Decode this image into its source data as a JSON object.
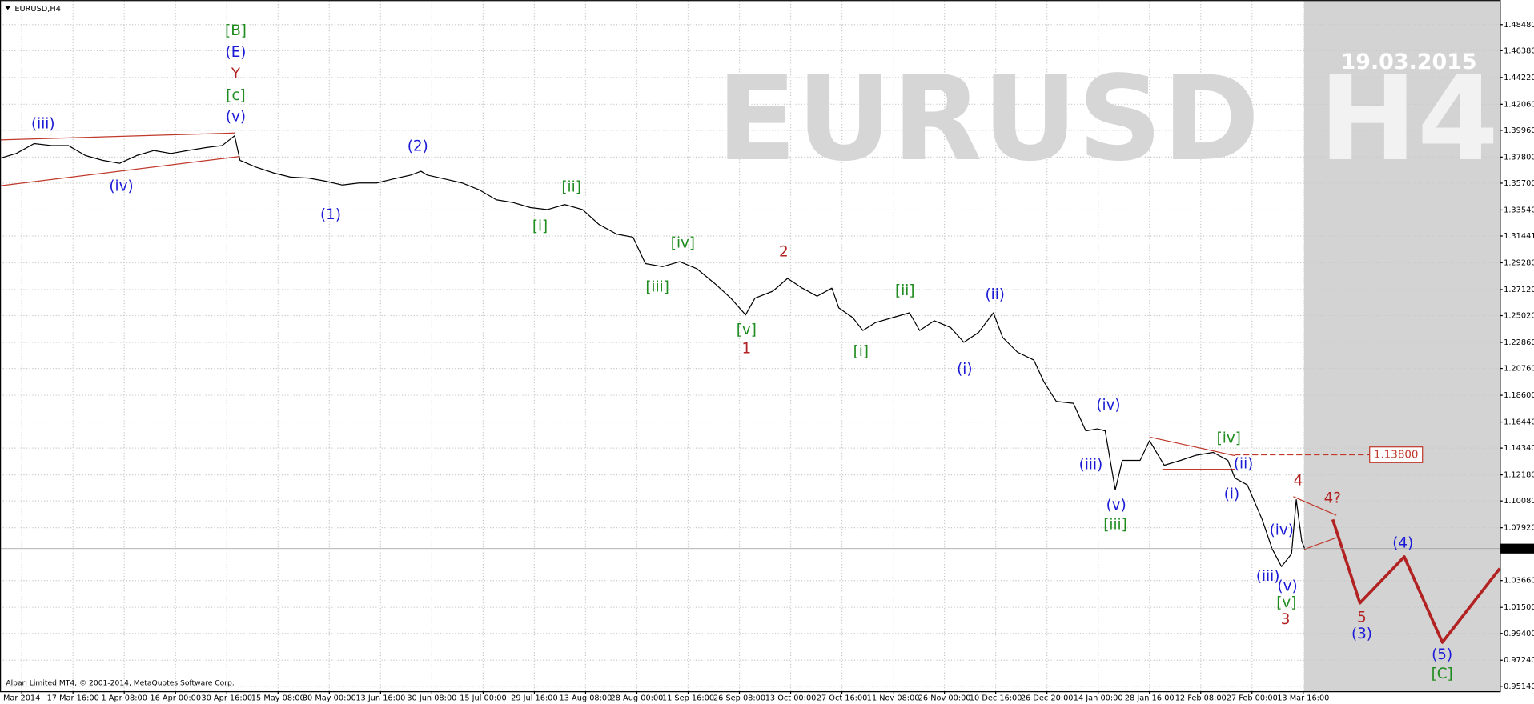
{
  "chart_data": {
    "type": "line",
    "title": "EURUSD,H4",
    "footer": "Alpari Limited MT4, © 2001-2014, MetaQuotes Software Corp.",
    "watermark": {
      "symbol": "EURUSD",
      "timeframe": "H4",
      "date": "19.03.2015"
    },
    "grid": true,
    "xlim": [
      0,
      1931
    ],
    "ylim": [
      0.9474,
      1.5038
    ],
    "xticks": [
      {
        "value": 28,
        "label": "Mar 2014"
      },
      {
        "value": 94,
        "label": "17 Mar 16:00"
      },
      {
        "value": 160,
        "label": "1 Apr 08:00"
      },
      {
        "value": 226,
        "label": "16 Apr 00:00"
      },
      {
        "value": 292,
        "label": "30 Apr 16:00"
      },
      {
        "value": 358,
        "label": "15 May 08:00"
      },
      {
        "value": 424,
        "label": "30 May 00:00"
      },
      {
        "value": 490,
        "label": "13 Jun 16:00"
      },
      {
        "value": 556,
        "label": "30 Jun 08:00"
      },
      {
        "value": 622,
        "label": "15 Jul 00:00"
      },
      {
        "value": 688,
        "label": "29 Jul 16:00"
      },
      {
        "value": 754,
        "label": "13 Aug 08:00"
      },
      {
        "value": 820,
        "label": "28 Aug 00:00"
      },
      {
        "value": 886,
        "label": "11 Sep 16:00"
      },
      {
        "value": 952,
        "label": "26 Sep 08:00"
      },
      {
        "value": 1018,
        "label": "13 Oct 00:00"
      },
      {
        "value": 1084,
        "label": "27 Oct 16:00"
      },
      {
        "value": 1150,
        "label": "11 Nov 08:00"
      },
      {
        "value": 1216,
        "label": "26 Nov 00:00"
      },
      {
        "value": 1282,
        "label": "10 Dec 16:00"
      },
      {
        "value": 1348,
        "label": "26 Dec 20:00"
      },
      {
        "value": 1414,
        "label": "14 Jan 00:00"
      },
      {
        "value": 1480,
        "label": "28 Jan 16:00"
      },
      {
        "value": 1546,
        "label": "12 Feb 08:00"
      },
      {
        "value": 1612,
        "label": "27 Feb 00:00"
      },
      {
        "value": 1678,
        "label": "13 Mar 16:00"
      }
    ],
    "yticks": [
      {
        "value": 1.4848,
        "label": "1.48480"
      },
      {
        "value": 1.4638,
        "label": "1.46380"
      },
      {
        "value": 1.4422,
        "label": "1.44220"
      },
      {
        "value": 1.4206,
        "label": "1.42060"
      },
      {
        "value": 1.3996,
        "label": "1.39960"
      },
      {
        "value": 1.378,
        "label": "1.37800"
      },
      {
        "value": 1.357,
        "label": "1.35700"
      },
      {
        "value": 1.3354,
        "label": "1.33540"
      },
      {
        "value": 1.31441,
        "label": "1.31441"
      },
      {
        "value": 1.2928,
        "label": "1.29280"
      },
      {
        "value": 1.2712,
        "label": "1.27120"
      },
      {
        "value": 1.2502,
        "label": "1.25020"
      },
      {
        "value": 1.2286,
        "label": "1.22860"
      },
      {
        "value": 1.2076,
        "label": "1.20760"
      },
      {
        "value": 1.186,
        "label": "1.18600"
      },
      {
        "value": 1.1644,
        "label": "1.16440"
      },
      {
        "value": 1.1434,
        "label": "1.14340"
      },
      {
        "value": 1.1218,
        "label": "1.12180"
      },
      {
        "value": 1.1008,
        "label": "1.10080"
      },
      {
        "value": 1.0792,
        "label": "1.07920"
      },
      {
        "value": 1.0366,
        "label": "1.03660"
      },
      {
        "value": 1.015,
        "label": "1.01500"
      },
      {
        "value": 0.994,
        "label": "0.99400"
      },
      {
        "value": 0.9724,
        "label": "0.97240"
      },
      {
        "value": 0.9514,
        "label": "0.95140"
      }
    ],
    "series": [
      {
        "color": "#000000",
        "x": [
          0,
          21,
          44,
          66,
          88,
          110,
          132,
          154,
          176,
          198,
          220,
          242,
          265,
          286,
          302,
          309,
          330,
          353,
          374,
          397,
          418,
          441,
          462,
          485,
          506,
          529,
          542,
          550,
          573,
          595,
          617,
          639,
          661,
          683,
          705,
          727,
          750,
          771,
          794,
          815,
          831,
          853,
          875,
          897,
          920,
          941,
          960,
          972,
          995,
          1014,
          1033,
          1052,
          1071,
          1080,
          1098,
          1111,
          1127,
          1149,
          1171,
          1184,
          1203,
          1224,
          1241,
          1260,
          1279,
          1291,
          1310,
          1331,
          1344,
          1360,
          1382,
          1398,
          1413,
          1423,
          1436,
          1445,
          1468,
          1480,
          1499,
          1520,
          1539,
          1562,
          1581,
          1590,
          1606,
          1625,
          1638,
          1650,
          1663,
          1669,
          1676,
          1680
        ],
        "values": [
          1.377,
          1.3809,
          1.3889,
          1.3873,
          1.3873,
          1.3793,
          1.3754,
          1.373,
          1.3793,
          1.3833,
          1.3809,
          1.3833,
          1.3857,
          1.3873,
          1.3952,
          1.3754,
          1.3698,
          1.3651,
          1.3619,
          1.3611,
          1.3587,
          1.3555,
          1.3571,
          1.3571,
          1.3603,
          1.3635,
          1.3666,
          1.3635,
          1.3603,
          1.3571,
          1.3516,
          1.3436,
          1.3413,
          1.3373,
          1.3357,
          1.3397,
          1.3357,
          1.3238,
          1.3159,
          1.3135,
          1.2921,
          1.2897,
          1.2937,
          1.2881,
          1.2762,
          1.2643,
          1.2508,
          1.2643,
          1.2699,
          1.2802,
          1.2723,
          1.2659,
          1.2723,
          1.2564,
          1.2485,
          1.2382,
          1.2445,
          1.2485,
          1.2525,
          1.2382,
          1.2461,
          1.2406,
          1.2287,
          1.2366,
          1.2525,
          1.2326,
          1.2207,
          1.2144,
          1.1969,
          1.1811,
          1.1795,
          1.1573,
          1.1589,
          1.1573,
          1.1097,
          1.1335,
          1.1335,
          1.1494,
          1.1295,
          1.1335,
          1.1375,
          1.1399,
          1.1335,
          1.1192,
          1.1137,
          1.0859,
          1.0621,
          1.0479,
          1.0582,
          1.1018,
          1.0685,
          1.0621
        ]
      },
      {
        "color": "#b22222",
        "x": [
          1716,
          1751,
          1808,
          1857,
          1931
        ],
        "values": [
          1.0859,
          1.0185,
          1.0558,
          0.9868,
          1.0463
        ]
      }
    ],
    "hlines": [
      {
        "value": 1.138,
        "label": "1.13800",
        "color": "#c0392b"
      },
      {
        "value": 1.06239,
        "label": "1.06239",
        "color": "#000000"
      }
    ],
    "annotations": [
      {
        "text": "[B]",
        "color": "#1e8c1e"
      },
      {
        "text": "(E)",
        "color": "#1a1ad6"
      },
      {
        "text": "Y",
        "color": "#b22222"
      },
      {
        "text": "[c]",
        "color": "#1e8c1e"
      },
      {
        "text": "(v)",
        "color": "#1a1ad6"
      },
      {
        "text": "(iii)",
        "color": "#1a1ad6"
      },
      {
        "text": "(iv)",
        "color": "#1a1ad6"
      },
      {
        "text": "(2)",
        "color": "#1a1ad6"
      },
      {
        "text": "(1)",
        "color": "#1a1ad6"
      },
      {
        "text": "[ii]",
        "color": "#1e8c1e"
      },
      {
        "text": "[i]",
        "color": "#1e8c1e"
      },
      {
        "text": "[iv]",
        "color": "#1e8c1e"
      },
      {
        "text": "[iii]",
        "color": "#1e8c1e"
      },
      {
        "text": "2",
        "color": "#b22222"
      },
      {
        "text": "[v]",
        "color": "#1e8c1e"
      },
      {
        "text": "1",
        "color": "#b22222"
      },
      {
        "text": "[ii]",
        "color": "#1e8c1e"
      },
      {
        "text": "(ii)",
        "color": "#1a1ad6"
      },
      {
        "text": "[i]",
        "color": "#1e8c1e"
      },
      {
        "text": "(i)",
        "color": "#1a1ad6"
      },
      {
        "text": "(iv)",
        "color": "#1a1ad6"
      },
      {
        "text": "(iii)",
        "color": "#1a1ad6"
      },
      {
        "text": "(v)",
        "color": "#1a1ad6"
      },
      {
        "text": "[iii]",
        "color": "#1e8c1e"
      },
      {
        "text": "[iv]",
        "color": "#1e8c1e"
      },
      {
        "text": "(ii)",
        "color": "#1a1ad6"
      },
      {
        "text": "(i)",
        "color": "#1a1ad6"
      },
      {
        "text": "4",
        "color": "#b22222"
      },
      {
        "text": "4?",
        "color": "#b22222"
      },
      {
        "text": "(iv)",
        "color": "#1a1ad6"
      },
      {
        "text": "(iii)",
        "color": "#1a1ad6"
      },
      {
        "text": "(v)",
        "color": "#1a1ad6"
      },
      {
        "text": "[v]",
        "color": "#1e8c1e"
      },
      {
        "text": "3",
        "color": "#b22222"
      },
      {
        "text": "5",
        "color": "#b22222"
      },
      {
        "text": "(3)",
        "color": "#1a1ad6"
      },
      {
        "text": "(4)",
        "color": "#1a1ad6"
      },
      {
        "text": "(5)",
        "color": "#1a1ad6"
      },
      {
        "text": "[C]",
        "color": "#1e8c1e"
      }
    ]
  }
}
